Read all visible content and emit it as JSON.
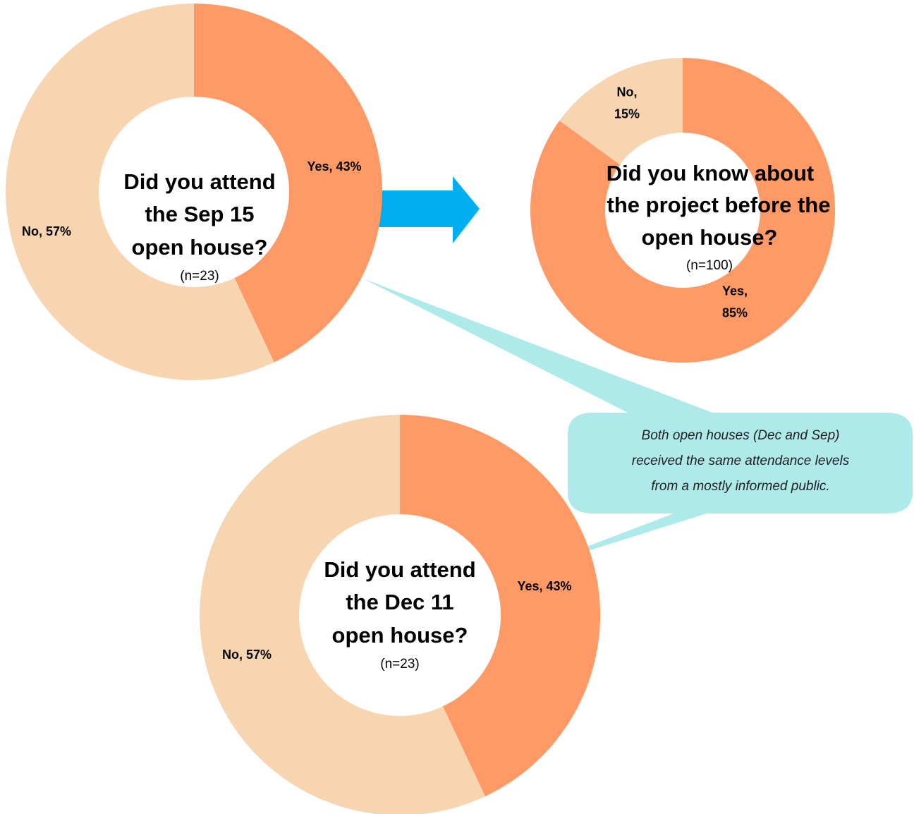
{
  "colors": {
    "yes": "#FF9966",
    "no": "#F6D5B0",
    "arrow": "#00AEEF",
    "callout": "#AEEAEA"
  },
  "chart_data": [
    {
      "type": "pie",
      "title_lines": [
        "Did you attend",
        "the Sep 15",
        "open house?"
      ],
      "subtitle": "(n=23)",
      "slices": [
        {
          "label": "Yes, 43%",
          "category": "Yes",
          "value": 43
        },
        {
          "label": "No, 57%",
          "category": "No",
          "value": 57
        }
      ]
    },
    {
      "type": "pie",
      "title_lines": [
        "Did you know about",
        "the project before the",
        "open house?"
      ],
      "subtitle": "(n=100)",
      "slices": [
        {
          "label": "Yes,\n85%",
          "category": "Yes",
          "value": 85
        },
        {
          "label": "No,\n15%",
          "category": "No",
          "value": 15
        }
      ]
    },
    {
      "type": "pie",
      "title_lines": [
        "Did you attend",
        "the Dec 11",
        "open house?"
      ],
      "subtitle": "(n=23)",
      "slices": [
        {
          "label": "Yes, 43%",
          "category": "Yes",
          "value": 43
        },
        {
          "label": "No, 57%",
          "category": "No",
          "value": 57
        }
      ]
    }
  ],
  "callout": {
    "lines": [
      "Both open houses (Dec and Sep)",
      "received the same attendance levels",
      "from a mostly informed public."
    ]
  }
}
